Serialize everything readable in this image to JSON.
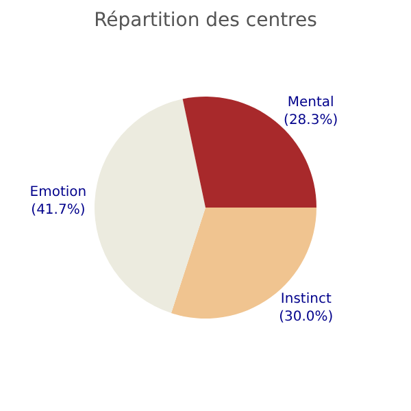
{
  "chart_data": {
    "type": "pie",
    "title": "Répartition des centres",
    "categories": [
      "Instinct",
      "Emotion",
      "Mental"
    ],
    "values": [
      30.0,
      41.7,
      28.3
    ],
    "value_labels": [
      "(30.0%)",
      "(41.7%)",
      "(28.3%)"
    ],
    "colors": [
      "#f0c490",
      "#ecebdf",
      "#a8292b"
    ],
    "legend": false
  }
}
